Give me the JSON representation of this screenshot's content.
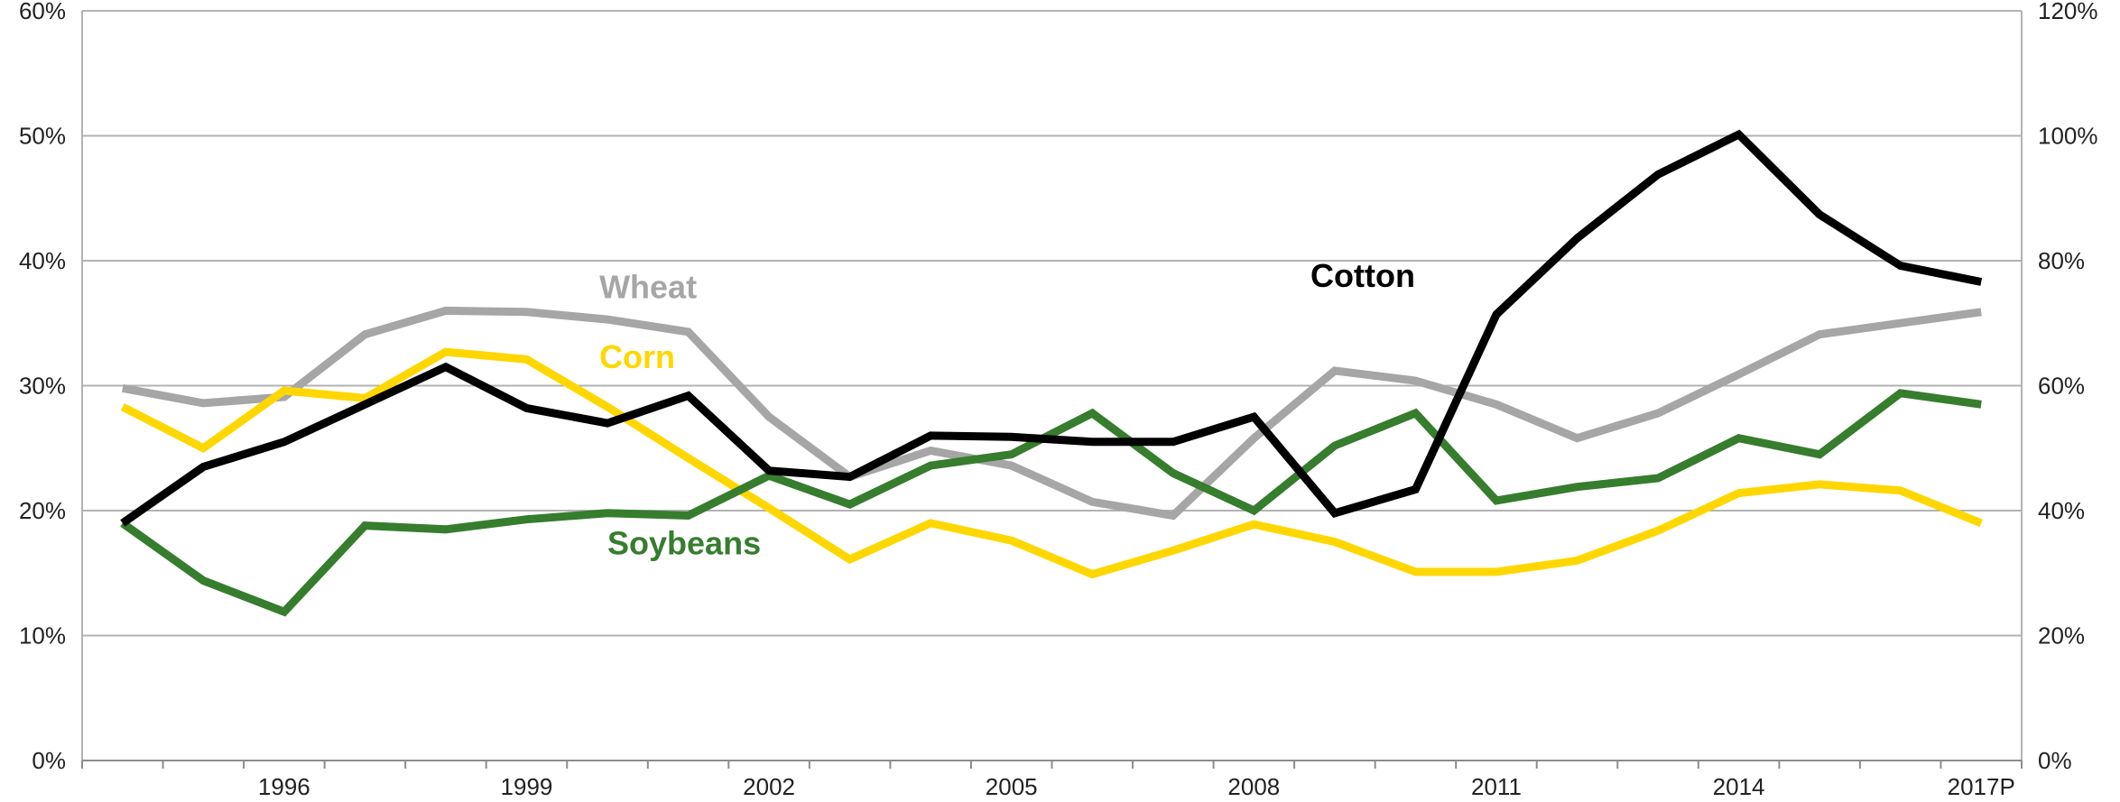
{
  "chart_data": {
    "type": "line",
    "title": "",
    "xlabel": "",
    "ylabel": "",
    "x": [
      1994,
      1995,
      1996,
      1997,
      1998,
      1999,
      2000,
      2001,
      2002,
      2003,
      2004,
      2005,
      2006,
      2007,
      2008,
      2009,
      2010,
      2011,
      2012,
      2013,
      2014,
      2015,
      2016,
      2017
    ],
    "x_tick_values": [
      1996,
      1999,
      2002,
      2005,
      2008,
      2011,
      2014,
      2017
    ],
    "x_tick_labels": [
      "1996",
      "1999",
      "2002",
      "2005",
      "2008",
      "2011",
      "2014",
      "2017P"
    ],
    "ylim": [
      0,
      60
    ],
    "y_ticks": [
      "0%",
      "10%",
      "20%",
      "30%",
      "40%",
      "50%",
      "60%"
    ],
    "y2lim": [
      0,
      120
    ],
    "y2_ticks": [
      "0%",
      "20%",
      "40%",
      "60%",
      "80%",
      "100%",
      "120%"
    ],
    "grid": true,
    "series": [
      {
        "name": "Wheat",
        "axis": "left",
        "color": "#a6a6a6",
        "label_x": 1999.9,
        "label_y": 37.0,
        "values": [
          29.8,
          28.6,
          29.1,
          34.1,
          36.0,
          35.9,
          35.3,
          34.3,
          27.5,
          22.7,
          24.8,
          23.6,
          20.7,
          19.6,
          25.8,
          31.2,
          30.4,
          28.5,
          25.8,
          27.8,
          30.9,
          34.1,
          35.0,
          35.9
        ]
      },
      {
        "name": "Corn",
        "axis": "left",
        "color": "#ffd700",
        "label_x": 1999.9,
        "label_y": 31.4,
        "values": [
          28.3,
          25.0,
          29.6,
          29.0,
          32.7,
          32.1,
          28.3,
          24.2,
          20.2,
          16.1,
          19.0,
          17.6,
          14.9,
          16.8,
          18.9,
          17.5,
          15.1,
          15.1,
          16.0,
          18.4,
          21.4,
          22.1,
          21.6,
          19.0
        ]
      },
      {
        "name": "Soybeans",
        "axis": "left",
        "color": "#367d2e",
        "label_x": 2000.0,
        "label_y": 16.5,
        "values": [
          19.0,
          14.4,
          11.9,
          18.8,
          18.5,
          19.3,
          19.8,
          19.6,
          22.8,
          20.5,
          23.6,
          24.5,
          27.8,
          23.0,
          20.0,
          25.2,
          27.8,
          20.8,
          21.9,
          22.6,
          25.8,
          24.5,
          29.4,
          28.5
        ]
      },
      {
        "name": "Cotton",
        "axis": "right",
        "color": "#000000",
        "label_x": 2008.7,
        "label_y": 75.8,
        "values": [
          38.0,
          47.0,
          51.0,
          57.0,
          63.0,
          56.4,
          54.0,
          58.4,
          46.4,
          45.4,
          52.0,
          51.8,
          51.0,
          51.0,
          55.0,
          39.6,
          43.4,
          71.4,
          83.6,
          93.8,
          100.2,
          87.4,
          79.2,
          76.6
        ]
      }
    ]
  }
}
